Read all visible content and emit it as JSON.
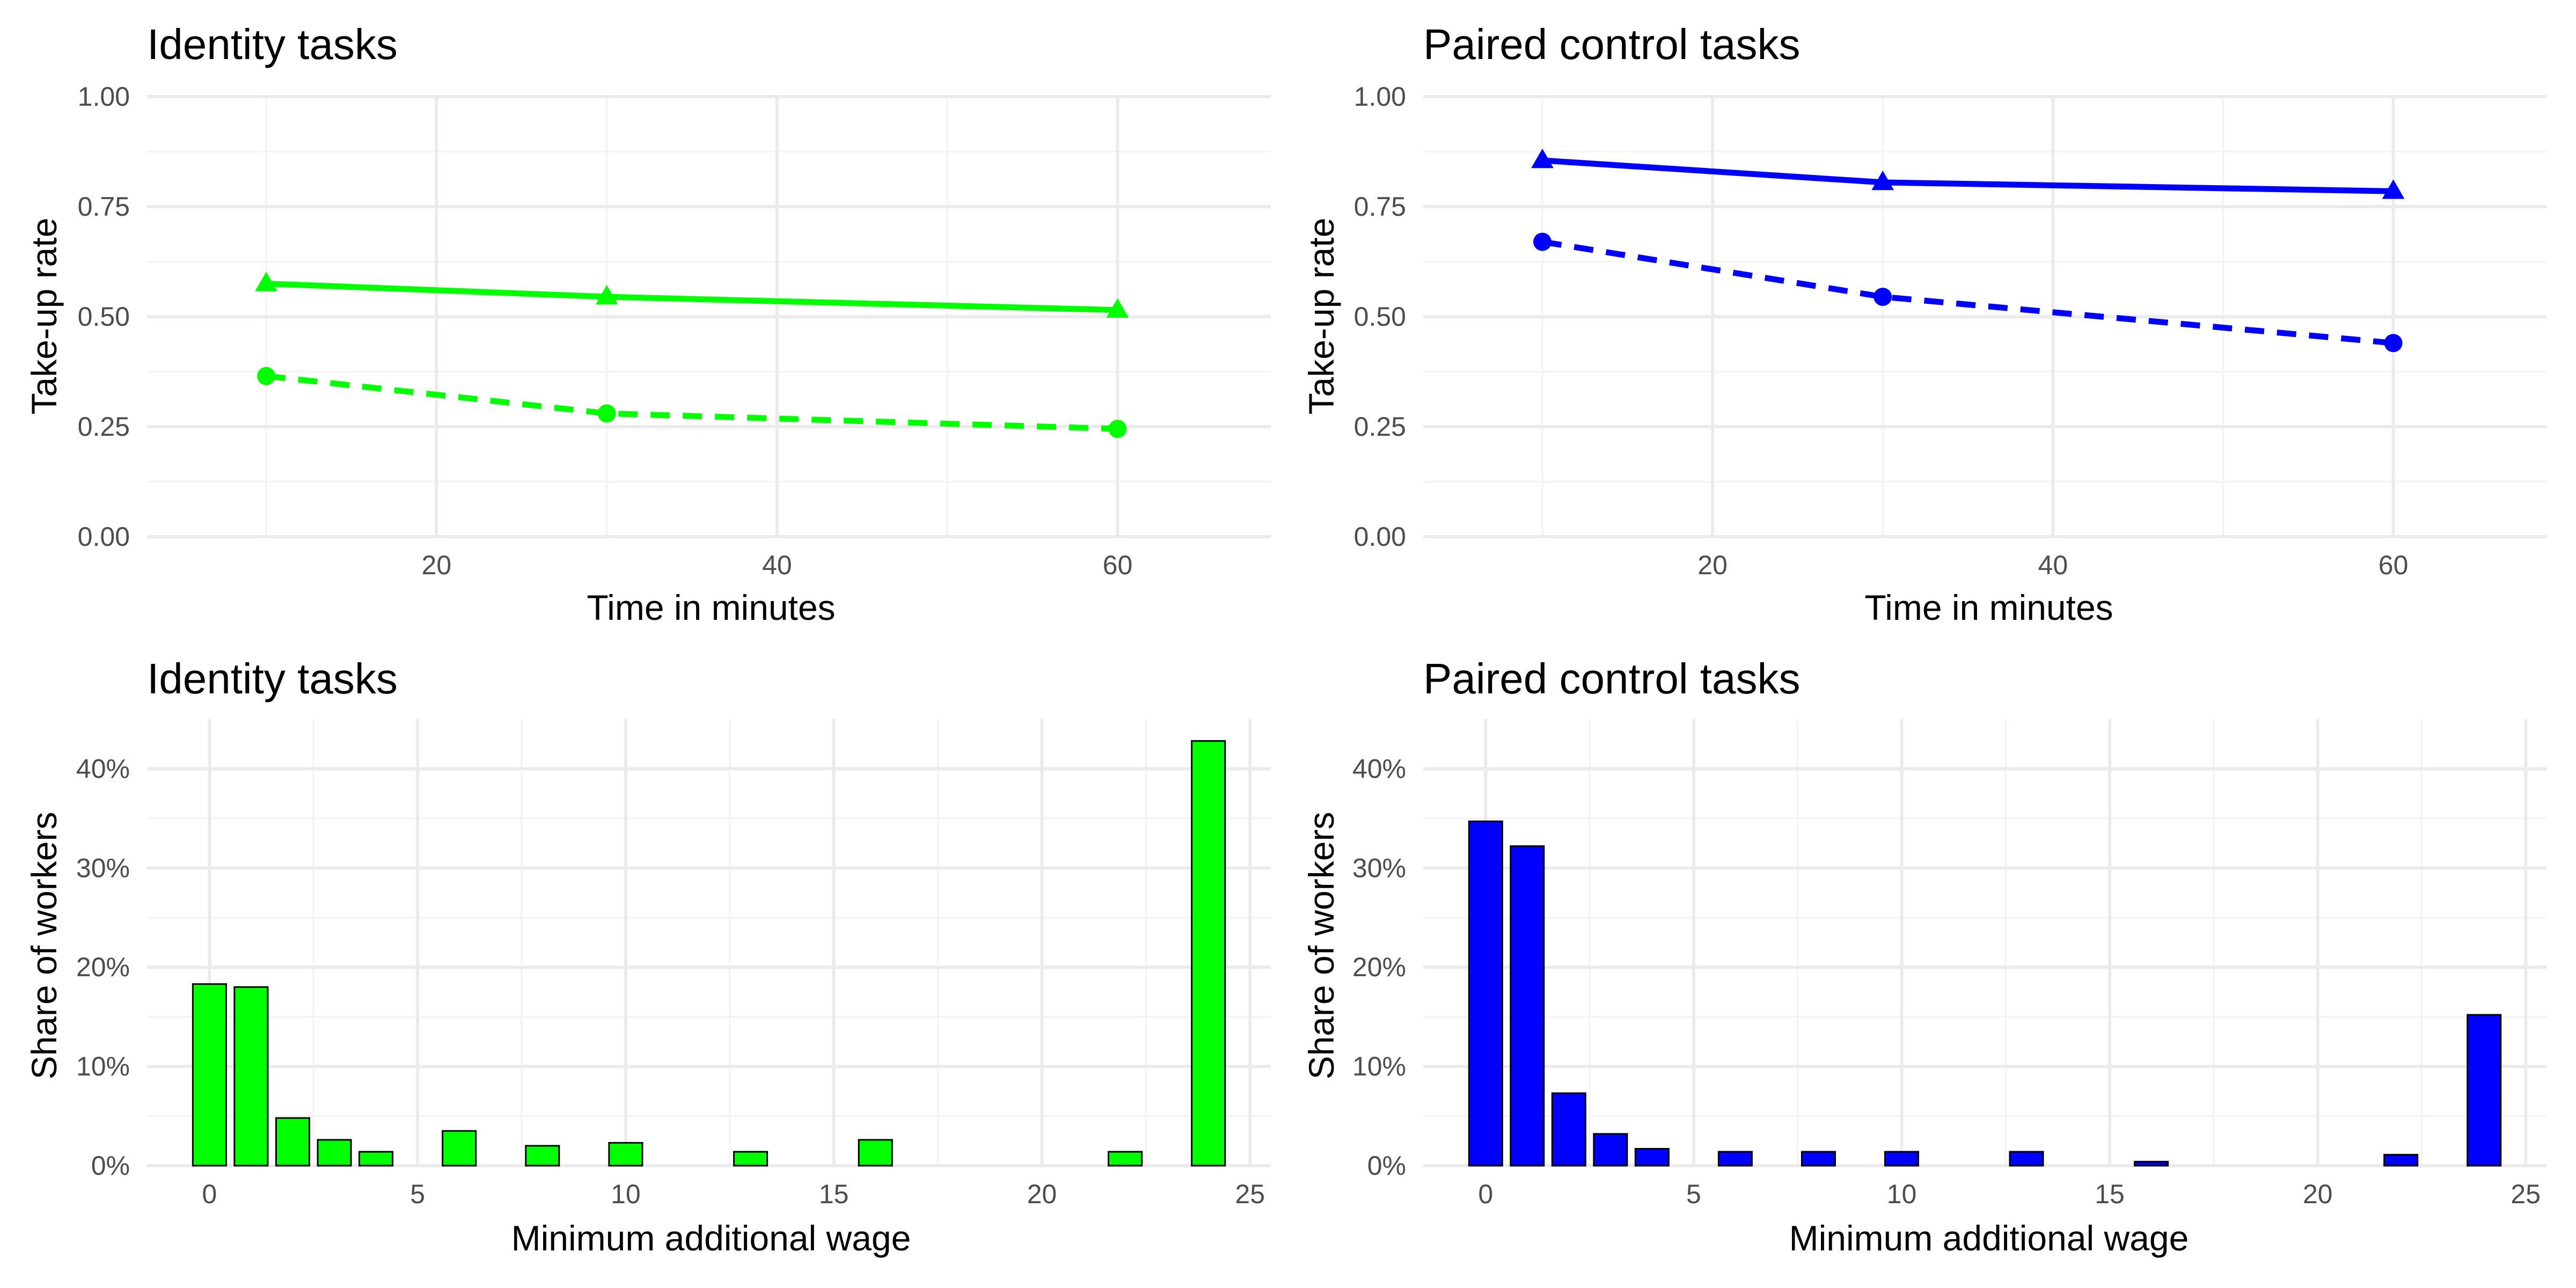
{
  "colors": {
    "identity": "#00ff00",
    "control": "#0000ff",
    "bar_outline": "#000000",
    "grid": "#ebebeb"
  },
  "chart_data": [
    {
      "type": "line",
      "title": "Identity tasks",
      "xlabel": "Time in minutes",
      "ylabel": "Take-up rate",
      "xlim": [
        3,
        69
      ],
      "ylim": [
        0,
        1
      ],
      "x_ticks": [
        "20",
        "40",
        "60"
      ],
      "y_ticks": [
        "0.00",
        "0.25",
        "0.50",
        "0.75",
        "1.00"
      ],
      "grid": true,
      "legend": "none",
      "color": "#00ff00",
      "series": [
        {
          "line": "solid",
          "marker": "triangle",
          "x": [
            10,
            30,
            60
          ],
          "y": [
            0.575,
            0.545,
            0.515
          ]
        },
        {
          "line": "dashed",
          "marker": "circle",
          "x": [
            10,
            30,
            60
          ],
          "y": [
            0.365,
            0.28,
            0.245
          ]
        }
      ]
    },
    {
      "type": "line",
      "title": "Paired control tasks",
      "xlabel": "Time in minutes",
      "ylabel": "Take-up rate",
      "xlim": [
        3,
        69
      ],
      "ylim": [
        0,
        1
      ],
      "x_ticks": [
        "20",
        "40",
        "60"
      ],
      "y_ticks": [
        "0.00",
        "0.25",
        "0.50",
        "0.75",
        "1.00"
      ],
      "grid": true,
      "legend": "none",
      "color": "#0000ff",
      "series": [
        {
          "line": "solid",
          "marker": "triangle",
          "x": [
            10,
            30,
            60
          ],
          "y": [
            0.855,
            0.805,
            0.785
          ]
        },
        {
          "line": "dashed",
          "marker": "circle",
          "x": [
            10,
            30,
            60
          ],
          "y": [
            0.67,
            0.545,
            0.44
          ]
        }
      ]
    },
    {
      "type": "bar",
      "title": "Identity tasks",
      "xlabel": "Minimum additional wage",
      "ylabel": "Share of workers",
      "xlim": [
        -1.5,
        25.5
      ],
      "ylim": [
        0,
        0.45
      ],
      "x_ticks": [
        "0",
        "5",
        "10",
        "15",
        "20",
        "25"
      ],
      "y_ticks": [
        "0%",
        "10%",
        "20%",
        "30%",
        "40%"
      ],
      "grid": true,
      "legend": "none",
      "color": "#00ff00",
      "x": [
        0,
        1,
        2,
        3,
        4,
        6,
        8,
        10,
        13,
        16,
        22,
        24
      ],
      "values": [
        0.183,
        0.18,
        0.048,
        0.026,
        0.014,
        0.035,
        0.02,
        0.023,
        0.014,
        0.026,
        0.014,
        0.428
      ]
    },
    {
      "type": "bar",
      "title": "Paired control tasks",
      "xlabel": "Minimum additional wage",
      "ylabel": "Share of workers",
      "xlim": [
        -1.5,
        25.5
      ],
      "ylim": [
        0,
        0.45
      ],
      "x_ticks": [
        "0",
        "5",
        "10",
        "15",
        "20",
        "25"
      ],
      "y_ticks": [
        "0%",
        "10%",
        "20%",
        "30%",
        "40%"
      ],
      "grid": true,
      "legend": "none",
      "color": "#0000ff",
      "x": [
        0,
        1,
        2,
        3,
        4,
        6,
        8,
        10,
        13,
        16,
        22,
        24
      ],
      "values": [
        0.347,
        0.322,
        0.073,
        0.032,
        0.017,
        0.014,
        0.014,
        0.014,
        0.014,
        0.004,
        0.011,
        0.152
      ]
    }
  ]
}
